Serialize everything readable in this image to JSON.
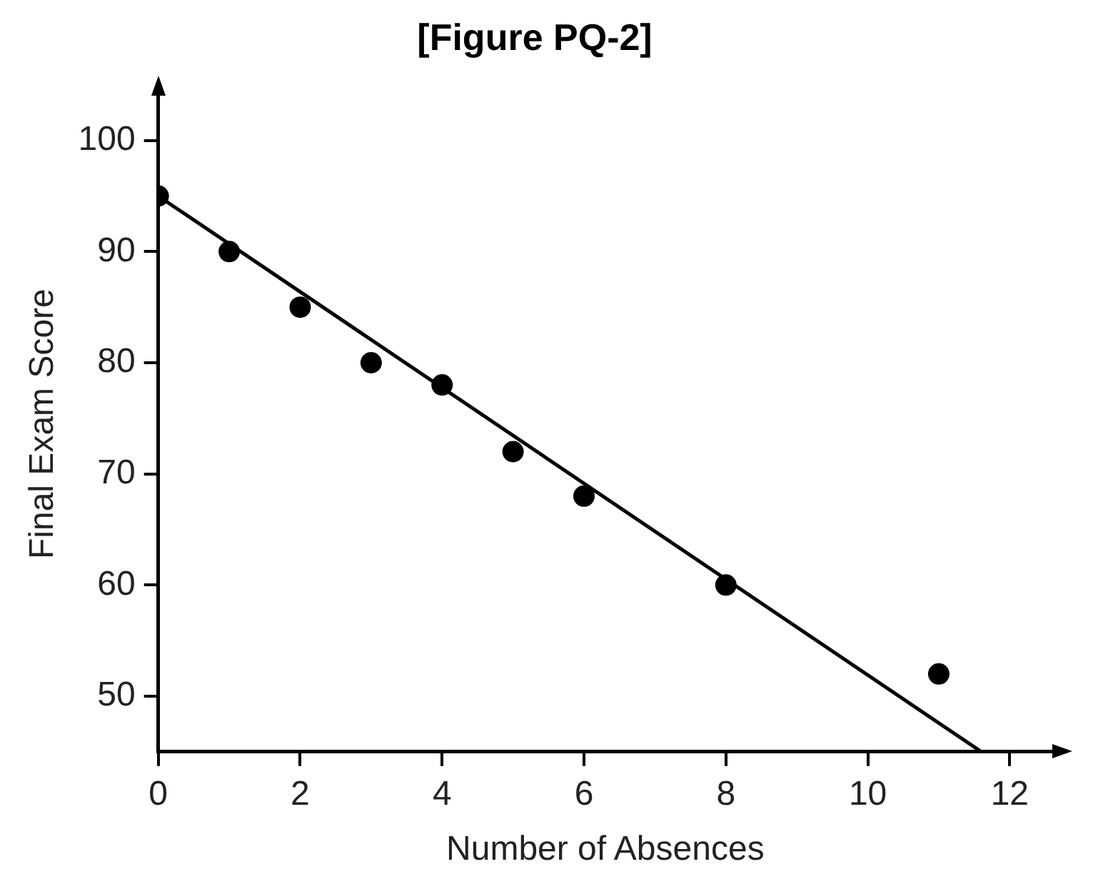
{
  "chart_data": {
    "type": "scatter",
    "title": "[Figure PQ-2]",
    "xlabel": "Number of Absences",
    "ylabel": "Final Exam Score",
    "series": [
      {
        "color": "#000000",
        "x": [
          0,
          1,
          2,
          3,
          4,
          5,
          6,
          8,
          11
        ],
        "values": [
          95,
          90,
          85,
          80,
          78,
          72,
          68,
          60,
          52
        ],
        "marker": "circle"
      },
      {
        "type": "line",
        "color": "#000000",
        "x": [
          0,
          11.6
        ],
        "values": [
          95,
          45
        ],
        "marker": "none",
        "line_style": "solid"
      }
    ],
    "xlim": [
      0,
      12.6
    ],
    "xticks": [
      0,
      2,
      4,
      6,
      8,
      10,
      12
    ],
    "ylim": [
      45,
      104
    ],
    "yticks": [
      50,
      60,
      70,
      80,
      90,
      100
    ],
    "grid": false,
    "legend": false
  }
}
